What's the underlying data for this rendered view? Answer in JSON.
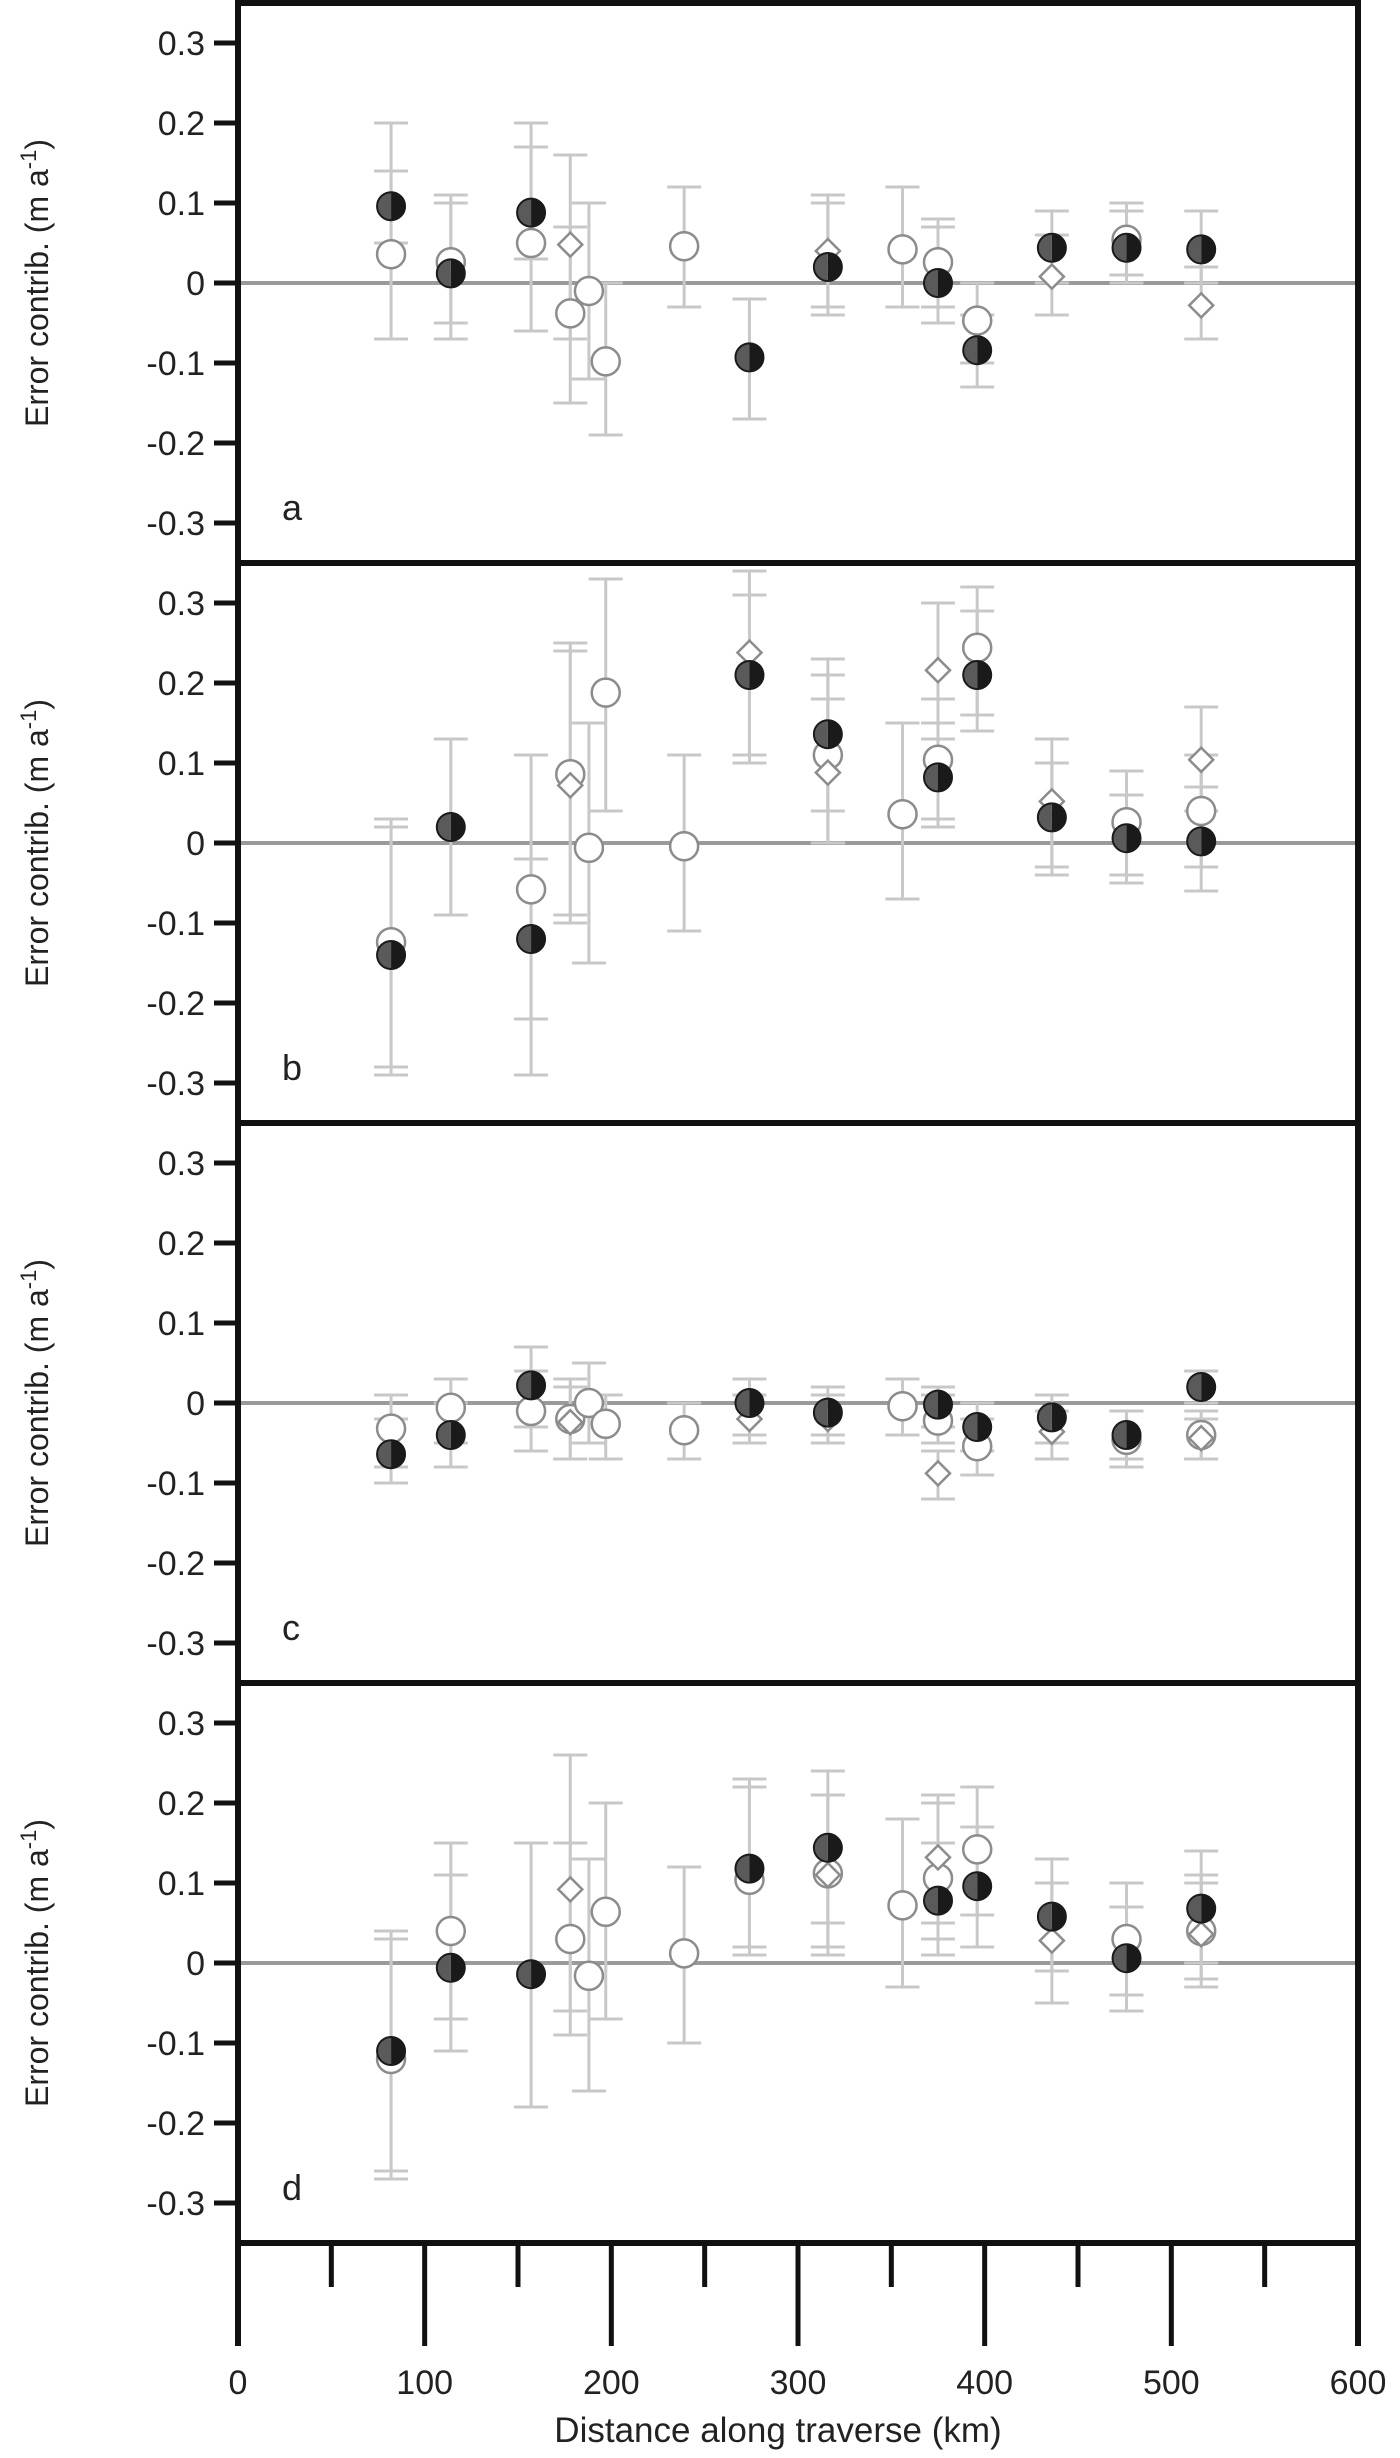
{
  "chart_data": {
    "type": "scatter",
    "xlabel": "Distance along traverse (km)",
    "xlim": [
      0,
      600
    ],
    "xticks": [
      "0",
      "100",
      "200",
      "300",
      "400",
      "500",
      "600"
    ],
    "ylabel": "Error contrib. (m a",
    "ylabel_sup": "-1",
    "ylabel_close": ")",
    "ylim": [
      -0.35,
      0.35
    ],
    "yticks": [
      "0.3",
      "0.2",
      "0.1",
      "0",
      "-0.1",
      "-0.2",
      "-0.3"
    ],
    "zero_line": true,
    "colors": {
      "frame": "#111111",
      "zero_line": "#9a9a9a",
      "error_bar": "#c8c8c8",
      "filled": "#1a1a1a",
      "open_stroke": "#8c8c8c"
    },
    "panels": [
      {
        "label": "a",
        "filled_circle": [
          {
            "x": 82,
            "y": 0.096,
            "lo": 0.05,
            "hi": 0.14
          },
          {
            "x": 114,
            "y": 0.012,
            "lo": -0.05,
            "hi": 0.1
          },
          {
            "x": 157,
            "y": 0.088,
            "lo": 0.03,
            "hi": 0.17
          },
          {
            "x": 274,
            "y": -0.093,
            "lo": -0.17,
            "hi": -0.02
          },
          {
            "x": 316,
            "y": 0.02,
            "lo": -0.03,
            "hi": 0.1
          },
          {
            "x": 375,
            "y": 0.0,
            "lo": -0.05,
            "hi": 0.07
          },
          {
            "x": 396,
            "y": -0.084,
            "lo": -0.13,
            "hi": -0.04
          },
          {
            "x": 436,
            "y": 0.044,
            "lo": 0.0,
            "hi": 0.09
          },
          {
            "x": 476,
            "y": 0.044,
            "lo": 0.01,
            "hi": 0.09
          },
          {
            "x": 516,
            "y": 0.042,
            "lo": 0.0,
            "hi": 0.09
          }
        ],
        "open_circle": [
          {
            "x": 82,
            "y": 0.036,
            "lo": -0.07,
            "hi": 0.2
          },
          {
            "x": 114,
            "y": 0.026,
            "lo": -0.07,
            "hi": 0.11
          },
          {
            "x": 157,
            "y": 0.05,
            "lo": -0.06,
            "hi": 0.2
          },
          {
            "x": 178,
            "y": -0.038,
            "lo": -0.15,
            "hi": 0.07
          },
          {
            "x": 188,
            "y": -0.01,
            "lo": -0.12,
            "hi": 0.1
          },
          {
            "x": 197,
            "y": -0.098,
            "lo": -0.19,
            "hi": 0.0
          },
          {
            "x": 239,
            "y": 0.046,
            "lo": -0.03,
            "hi": 0.12
          },
          {
            "x": 356,
            "y": 0.042,
            "lo": -0.03,
            "hi": 0.12
          },
          {
            "x": 375,
            "y": 0.026,
            "lo": -0.03,
            "hi": 0.08
          },
          {
            "x": 396,
            "y": -0.047,
            "lo": -0.1,
            "hi": 0.0
          },
          {
            "x": 476,
            "y": 0.054,
            "lo": 0.0,
            "hi": 0.1
          }
        ],
        "diamond": [
          {
            "x": 178,
            "y": 0.048,
            "lo": -0.07,
            "hi": 0.16
          },
          {
            "x": 316,
            "y": 0.04,
            "lo": -0.04,
            "hi": 0.11
          },
          {
            "x": 436,
            "y": 0.008,
            "lo": -0.04,
            "hi": 0.06
          },
          {
            "x": 516,
            "y": -0.028,
            "lo": -0.07,
            "hi": 0.02
          }
        ]
      },
      {
        "label": "b",
        "filled_circle": [
          {
            "x": 82,
            "y": -0.14,
            "lo": -0.28,
            "hi": 0.02
          },
          {
            "x": 114,
            "y": 0.02,
            "lo": -0.09,
            "hi": 0.13
          },
          {
            "x": 157,
            "y": -0.12,
            "lo": -0.22,
            "hi": -0.02
          },
          {
            "x": 274,
            "y": 0.21,
            "lo": 0.11,
            "hi": 0.31
          },
          {
            "x": 316,
            "y": 0.136,
            "lo": 0.04,
            "hi": 0.23
          },
          {
            "x": 375,
            "y": 0.082,
            "lo": 0.02,
            "hi": 0.15
          },
          {
            "x": 396,
            "y": 0.21,
            "lo": 0.14,
            "hi": 0.29
          },
          {
            "x": 436,
            "y": 0.032,
            "lo": -0.04,
            "hi": 0.1
          },
          {
            "x": 476,
            "y": 0.006,
            "lo": -0.05,
            "hi": 0.06
          },
          {
            "x": 516,
            "y": 0.002,
            "lo": -0.06,
            "hi": 0.07
          }
        ],
        "open_circle": [
          {
            "x": 82,
            "y": -0.124,
            "lo": -0.29,
            "hi": 0.03
          },
          {
            "x": 157,
            "y": -0.058,
            "lo": -0.29,
            "hi": 0.11
          },
          {
            "x": 178,
            "y": 0.086,
            "lo": -0.09,
            "hi": 0.24
          },
          {
            "x": 188,
            "y": -0.006,
            "lo": -0.15,
            "hi": 0.15
          },
          {
            "x": 197,
            "y": 0.188,
            "lo": 0.04,
            "hi": 0.33
          },
          {
            "x": 239,
            "y": -0.004,
            "lo": -0.11,
            "hi": 0.11
          },
          {
            "x": 316,
            "y": 0.11,
            "lo": 0.0,
            "hi": 0.21
          },
          {
            "x": 356,
            "y": 0.036,
            "lo": -0.07,
            "hi": 0.15
          },
          {
            "x": 375,
            "y": 0.104,
            "lo": 0.03,
            "hi": 0.18
          },
          {
            "x": 396,
            "y": 0.244,
            "lo": 0.16,
            "hi": 0.32
          },
          {
            "x": 476,
            "y": 0.026,
            "lo": -0.04,
            "hi": 0.09
          },
          {
            "x": 516,
            "y": 0.04,
            "lo": -0.03,
            "hi": 0.11
          }
        ],
        "diamond": [
          {
            "x": 178,
            "y": 0.072,
            "lo": -0.1,
            "hi": 0.25
          },
          {
            "x": 274,
            "y": 0.238,
            "lo": 0.1,
            "hi": 0.34
          },
          {
            "x": 316,
            "y": 0.088,
            "lo": 0.0,
            "hi": 0.18
          },
          {
            "x": 375,
            "y": 0.216,
            "lo": 0.13,
            "hi": 0.3
          },
          {
            "x": 436,
            "y": 0.052,
            "lo": -0.03,
            "hi": 0.13
          },
          {
            "x": 516,
            "y": 0.104,
            "lo": 0.04,
            "hi": 0.17
          }
        ]
      },
      {
        "label": "c",
        "filled_circle": [
          {
            "x": 82,
            "y": -0.064,
            "lo": -0.1,
            "hi": -0.02
          },
          {
            "x": 114,
            "y": -0.04,
            "lo": -0.08,
            "hi": 0.0
          },
          {
            "x": 157,
            "y": 0.022,
            "lo": -0.03,
            "hi": 0.07
          },
          {
            "x": 274,
            "y": 0.0,
            "lo": -0.04,
            "hi": 0.03
          },
          {
            "x": 316,
            "y": -0.012,
            "lo": -0.04,
            "hi": 0.02
          },
          {
            "x": 375,
            "y": -0.002,
            "lo": -0.03,
            "hi": 0.02
          },
          {
            "x": 396,
            "y": -0.03,
            "lo": -0.06,
            "hi": 0.0
          },
          {
            "x": 436,
            "y": -0.018,
            "lo": -0.05,
            "hi": 0.01
          },
          {
            "x": 476,
            "y": -0.04,
            "lo": -0.07,
            "hi": -0.01
          },
          {
            "x": 516,
            "y": 0.02,
            "lo": 0.0,
            "hi": 0.04
          }
        ],
        "open_circle": [
          {
            "x": 82,
            "y": -0.032,
            "lo": -0.08,
            "hi": 0.01
          },
          {
            "x": 114,
            "y": -0.006,
            "lo": -0.05,
            "hi": 0.03
          },
          {
            "x": 157,
            "y": -0.01,
            "lo": -0.06,
            "hi": 0.04
          },
          {
            "x": 178,
            "y": -0.02,
            "lo": -0.07,
            "hi": 0.03
          },
          {
            "x": 188,
            "y": 0.0,
            "lo": -0.05,
            "hi": 0.05
          },
          {
            "x": 197,
            "y": -0.026,
            "lo": -0.07,
            "hi": 0.01
          },
          {
            "x": 239,
            "y": -0.034,
            "lo": -0.07,
            "hi": 0.0
          },
          {
            "x": 356,
            "y": -0.004,
            "lo": -0.04,
            "hi": 0.03
          },
          {
            "x": 375,
            "y": -0.022,
            "lo": -0.05,
            "hi": 0.01
          },
          {
            "x": 396,
            "y": -0.054,
            "lo": -0.09,
            "hi": -0.02
          },
          {
            "x": 476,
            "y": -0.046,
            "lo": -0.08,
            "hi": -0.01
          },
          {
            "x": 516,
            "y": -0.04,
            "lo": -0.07,
            "hi": -0.01
          }
        ],
        "diamond": [
          {
            "x": 178,
            "y": -0.024,
            "lo": -0.07,
            "hi": 0.02
          },
          {
            "x": 274,
            "y": -0.02,
            "lo": -0.05,
            "hi": 0.01
          },
          {
            "x": 316,
            "y": -0.02,
            "lo": -0.05,
            "hi": 0.01
          },
          {
            "x": 375,
            "y": -0.088,
            "lo": -0.12,
            "hi": -0.06
          },
          {
            "x": 436,
            "y": -0.036,
            "lo": -0.07,
            "hi": -0.01
          },
          {
            "x": 516,
            "y": -0.044,
            "lo": -0.07,
            "hi": -0.02
          }
        ]
      },
      {
        "label": "d",
        "filled_circle": [
          {
            "x": 82,
            "y": -0.11,
            "lo": -0.26,
            "hi": 0.04
          },
          {
            "x": 114,
            "y": -0.006,
            "lo": -0.11,
            "hi": 0.11
          },
          {
            "x": 157,
            "y": -0.014,
            "lo": -0.18,
            "hi": 0.15
          },
          {
            "x": 274,
            "y": 0.118,
            "lo": 0.02,
            "hi": 0.22
          },
          {
            "x": 316,
            "y": 0.144,
            "lo": 0.05,
            "hi": 0.24
          },
          {
            "x": 375,
            "y": 0.078,
            "lo": 0.01,
            "hi": 0.15
          },
          {
            "x": 396,
            "y": 0.096,
            "lo": 0.02,
            "hi": 0.17
          },
          {
            "x": 436,
            "y": 0.058,
            "lo": -0.01,
            "hi": 0.13
          },
          {
            "x": 476,
            "y": 0.006,
            "lo": -0.06,
            "hi": 0.07
          },
          {
            "x": 516,
            "y": 0.068,
            "lo": 0.0,
            "hi": 0.14
          }
        ],
        "open_circle": [
          {
            "x": 82,
            "y": -0.12,
            "lo": -0.27,
            "hi": 0.03
          },
          {
            "x": 114,
            "y": 0.04,
            "lo": -0.07,
            "hi": 0.15
          },
          {
            "x": 178,
            "y": 0.03,
            "lo": -0.09,
            "hi": 0.15
          },
          {
            "x": 188,
            "y": -0.016,
            "lo": -0.16,
            "hi": 0.13
          },
          {
            "x": 197,
            "y": 0.064,
            "lo": -0.07,
            "hi": 0.2
          },
          {
            "x": 239,
            "y": 0.012,
            "lo": -0.1,
            "hi": 0.12
          },
          {
            "x": 274,
            "y": 0.104,
            "lo": 0.01,
            "hi": 0.23
          },
          {
            "x": 316,
            "y": 0.112,
            "lo": 0.02,
            "hi": 0.21
          },
          {
            "x": 356,
            "y": 0.072,
            "lo": -0.03,
            "hi": 0.18
          },
          {
            "x": 375,
            "y": 0.106,
            "lo": 0.03,
            "hi": 0.2
          },
          {
            "x": 396,
            "y": 0.142,
            "lo": 0.06,
            "hi": 0.22
          },
          {
            "x": 476,
            "y": 0.03,
            "lo": -0.04,
            "hi": 0.1
          },
          {
            "x": 516,
            "y": 0.04,
            "lo": -0.03,
            "hi": 0.11
          }
        ],
        "diamond": [
          {
            "x": 178,
            "y": 0.092,
            "lo": -0.06,
            "hi": 0.26
          },
          {
            "x": 316,
            "y": 0.11,
            "lo": 0.01,
            "hi": 0.21
          },
          {
            "x": 375,
            "y": 0.132,
            "lo": 0.05,
            "hi": 0.21
          },
          {
            "x": 436,
            "y": 0.028,
            "lo": -0.05,
            "hi": 0.1
          },
          {
            "x": 516,
            "y": 0.036,
            "lo": -0.02,
            "hi": 0.1
          }
        ]
      }
    ]
  }
}
